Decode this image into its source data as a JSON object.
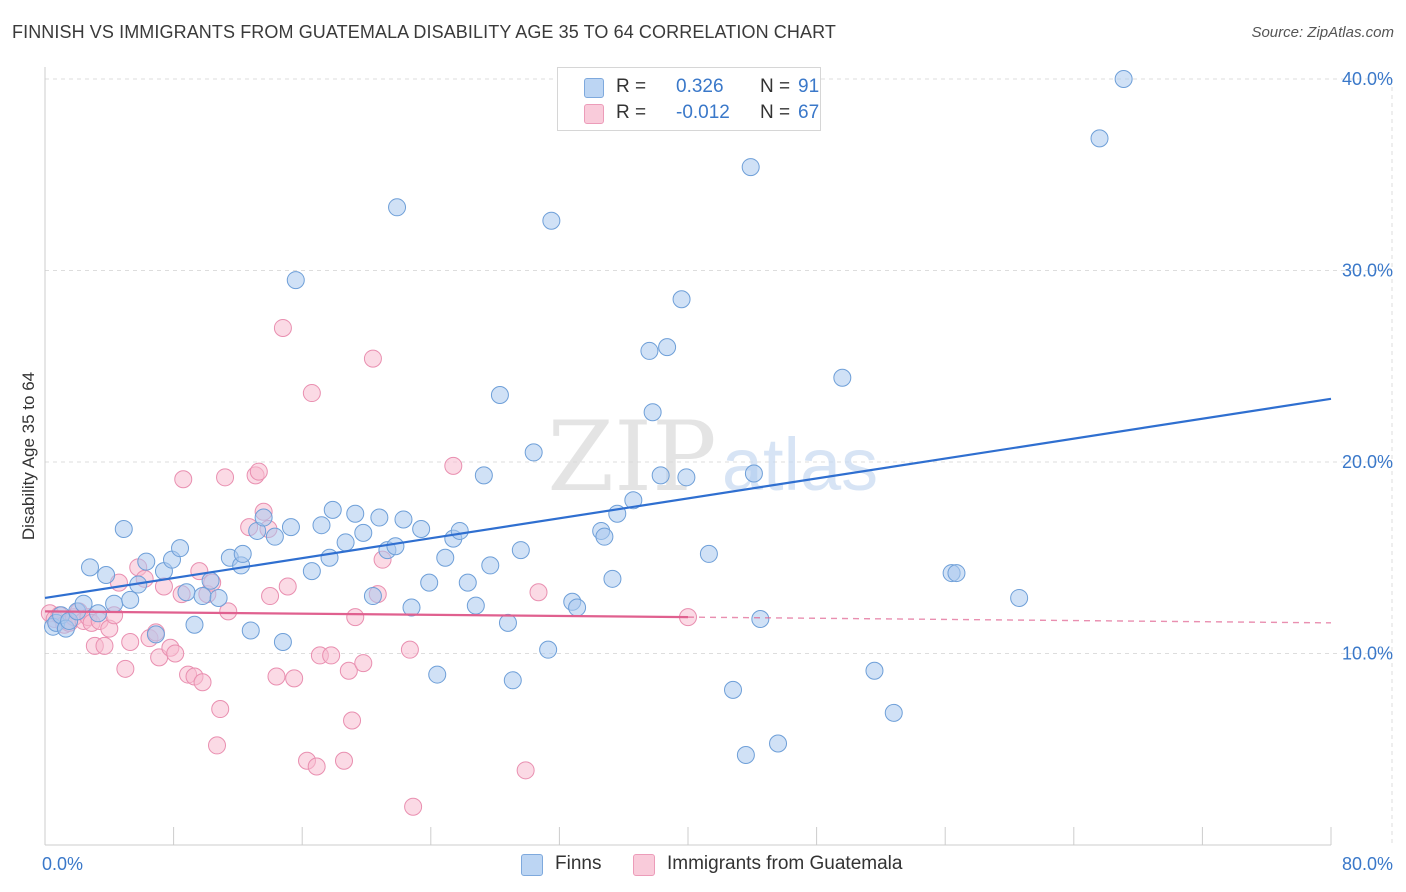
{
  "title": "FINNISH VS IMMIGRANTS FROM GUATEMALA DISABILITY AGE 35 TO 64 CORRELATION CHART",
  "source": "Source: ZipAtlas.com",
  "watermark": {
    "zip": "ZIP",
    "atlas": "atlas"
  },
  "legend": {
    "r_label": "R =",
    "n_label": "N =",
    "finns": {
      "r": "0.326",
      "n": "91"
    },
    "guatemala": {
      "r": "-0.012",
      "n": "67"
    }
  },
  "colors": {
    "finns_fill": "#a9c8ef",
    "finns_stroke": "#6e9fd8",
    "finns_line": "#2f6fd0",
    "guat_fill": "#f7bcd0",
    "guat_stroke": "#e98fb0",
    "guat_line": "#e0608f",
    "axis_text": "#3a78c9",
    "grid": "#dddddd"
  },
  "chart_data": {
    "type": "scatter",
    "title": "FINNISH VS IMMIGRANTS FROM GUATEMALA DISABILITY AGE 35 TO 64 CORRELATION CHART",
    "xlabel": "",
    "ylabel": "Disability Age 35 to 64",
    "xlim": [
      0,
      80
    ],
    "ylim": [
      0,
      40
    ],
    "x_tick_labels": [
      "0.0%",
      "80.0%"
    ],
    "y_ticks": [
      10,
      20,
      30,
      40
    ],
    "y_tick_labels": [
      "10.0%",
      "20.0%",
      "30.0%",
      "40.0%"
    ],
    "series": [
      {
        "name": "Finns",
        "trend": {
          "x": [
            0,
            80
          ],
          "y": [
            12.9,
            23.3
          ],
          "dashed_from": null
        },
        "points": [
          [
            0.5,
            11.4
          ],
          [
            0.7,
            11.6
          ],
          [
            1,
            12
          ],
          [
            1.3,
            11.3
          ],
          [
            1.5,
            11.7
          ],
          [
            2,
            12.2
          ],
          [
            2.4,
            12.6
          ],
          [
            2.8,
            14.5
          ],
          [
            3.3,
            12.1
          ],
          [
            3.8,
            14.1
          ],
          [
            4.3,
            12.6
          ],
          [
            4.9,
            16.5
          ],
          [
            5.3,
            12.8
          ],
          [
            5.8,
            13.6
          ],
          [
            6.3,
            14.8
          ],
          [
            6.9,
            11
          ],
          [
            7.4,
            14.3
          ],
          [
            7.9,
            14.9
          ],
          [
            8.4,
            15.5
          ],
          [
            8.8,
            13.2
          ],
          [
            9.3,
            11.5
          ],
          [
            9.8,
            13
          ],
          [
            10.3,
            13.8
          ],
          [
            10.8,
            12.9
          ],
          [
            11.5,
            15
          ],
          [
            12.2,
            14.6
          ],
          [
            12.3,
            15.2
          ],
          [
            12.8,
            11.2
          ],
          [
            13.2,
            16.4
          ],
          [
            13.6,
            17.1
          ],
          [
            14.3,
            16.1
          ],
          [
            14.8,
            10.6
          ],
          [
            15.3,
            16.6
          ],
          [
            15.6,
            29.5
          ],
          [
            16.6,
            14.3
          ],
          [
            17.2,
            16.7
          ],
          [
            17.7,
            15
          ],
          [
            17.9,
            17.5
          ],
          [
            18.7,
            15.8
          ],
          [
            19.3,
            17.3
          ],
          [
            19.8,
            16.3
          ],
          [
            20.4,
            13
          ],
          [
            20.8,
            17.1
          ],
          [
            21.3,
            15.4
          ],
          [
            21.8,
            15.6
          ],
          [
            21.9,
            33.3
          ],
          [
            22.3,
            17
          ],
          [
            22.8,
            12.4
          ],
          [
            23.4,
            16.5
          ],
          [
            23.9,
            13.7
          ],
          [
            24.4,
            8.9
          ],
          [
            24.9,
            15
          ],
          [
            25.4,
            16
          ],
          [
            25.8,
            16.4
          ],
          [
            26.3,
            13.7
          ],
          [
            26.8,
            12.5
          ],
          [
            27.3,
            19.3
          ],
          [
            27.7,
            14.6
          ],
          [
            28.3,
            23.5
          ],
          [
            28.8,
            11.6
          ],
          [
            29.1,
            8.6
          ],
          [
            29.6,
            15.4
          ],
          [
            30.4,
            20.5
          ],
          [
            31.3,
            10.2
          ],
          [
            31.5,
            32.6
          ],
          [
            32.8,
            12.7
          ],
          [
            33.1,
            12.4
          ],
          [
            34.6,
            16.4
          ],
          [
            34.8,
            16.1
          ],
          [
            35.3,
            13.9
          ],
          [
            35.6,
            17.3
          ],
          [
            36.6,
            18
          ],
          [
            37.6,
            25.8
          ],
          [
            37.8,
            22.6
          ],
          [
            38.3,
            19.3
          ],
          [
            38.7,
            26
          ],
          [
            39.6,
            28.5
          ],
          [
            39.9,
            19.2
          ],
          [
            41.3,
            15.2
          ],
          [
            42.8,
            8.1
          ],
          [
            43.6,
            4.7
          ],
          [
            43.9,
            35.4
          ],
          [
            44.1,
            19.4
          ],
          [
            44.5,
            11.8
          ],
          [
            45.6,
            5.3
          ],
          [
            49.6,
            24.4
          ],
          [
            51.6,
            9.1
          ],
          [
            52.8,
            6.9
          ],
          [
            56.4,
            14.2
          ],
          [
            56.7,
            14.2
          ],
          [
            60.6,
            12.9
          ],
          [
            65.6,
            36.9
          ],
          [
            67.1,
            40
          ]
        ]
      },
      {
        "name": "Immigrants from Guatemala",
        "trend": {
          "x": [
            0,
            80
          ],
          "y": [
            12.2,
            11.6
          ],
          "dashed_from": 40
        },
        "points": [
          [
            0.3,
            12.1
          ],
          [
            0.6,
            11.8
          ],
          [
            0.9,
            12
          ],
          [
            1.2,
            11.5
          ],
          [
            1.5,
            11.6
          ],
          [
            1.8,
            11.9
          ],
          [
            2.1,
            12.2
          ],
          [
            2.4,
            11.7
          ],
          [
            2.7,
            11.9
          ],
          [
            2.9,
            11.6
          ],
          [
            3.1,
            10.4
          ],
          [
            3.4,
            11.7
          ],
          [
            3.7,
            10.4
          ],
          [
            4,
            11.3
          ],
          [
            4.3,
            12
          ],
          [
            4.6,
            13.7
          ],
          [
            5,
            9.2
          ],
          [
            5.3,
            10.6
          ],
          [
            5.8,
            14.5
          ],
          [
            6.2,
            13.9
          ],
          [
            6.5,
            10.8
          ],
          [
            6.9,
            11.1
          ],
          [
            7.1,
            9.8
          ],
          [
            7.4,
            13.5
          ],
          [
            7.8,
            10.3
          ],
          [
            8.1,
            10
          ],
          [
            8.5,
            13.1
          ],
          [
            8.6,
            19.1
          ],
          [
            8.9,
            8.9
          ],
          [
            9.3,
            8.8
          ],
          [
            9.6,
            14.3
          ],
          [
            9.8,
            8.5
          ],
          [
            10.1,
            13.1
          ],
          [
            10.4,
            13.7
          ],
          [
            10.7,
            5.2
          ],
          [
            10.9,
            7.1
          ],
          [
            11.2,
            19.2
          ],
          [
            11.4,
            12.2
          ],
          [
            12.7,
            16.6
          ],
          [
            13.1,
            19.3
          ],
          [
            13.3,
            19.5
          ],
          [
            13.6,
            17.4
          ],
          [
            13.9,
            16.5
          ],
          [
            14,
            13
          ],
          [
            14.4,
            8.8
          ],
          [
            14.8,
            27
          ],
          [
            15.1,
            13.5
          ],
          [
            15.5,
            8.7
          ],
          [
            16.3,
            4.4
          ],
          [
            16.6,
            23.6
          ],
          [
            16.9,
            4.1
          ],
          [
            17.1,
            9.9
          ],
          [
            17.8,
            9.9
          ],
          [
            18.6,
            4.4
          ],
          [
            18.9,
            9.1
          ],
          [
            19.1,
            6.5
          ],
          [
            19.3,
            11.9
          ],
          [
            19.8,
            9.5
          ],
          [
            20.4,
            25.4
          ],
          [
            20.7,
            13.1
          ],
          [
            21,
            14.9
          ],
          [
            22.7,
            10.2
          ],
          [
            22.9,
            2
          ],
          [
            25.4,
            19.8
          ],
          [
            29.9,
            3.9
          ],
          [
            30.7,
            13.2
          ],
          [
            40,
            11.9
          ]
        ]
      }
    ]
  },
  "bottom_legend": {
    "finns": "Finns",
    "guatemala": "Immigrants from Guatemala"
  }
}
